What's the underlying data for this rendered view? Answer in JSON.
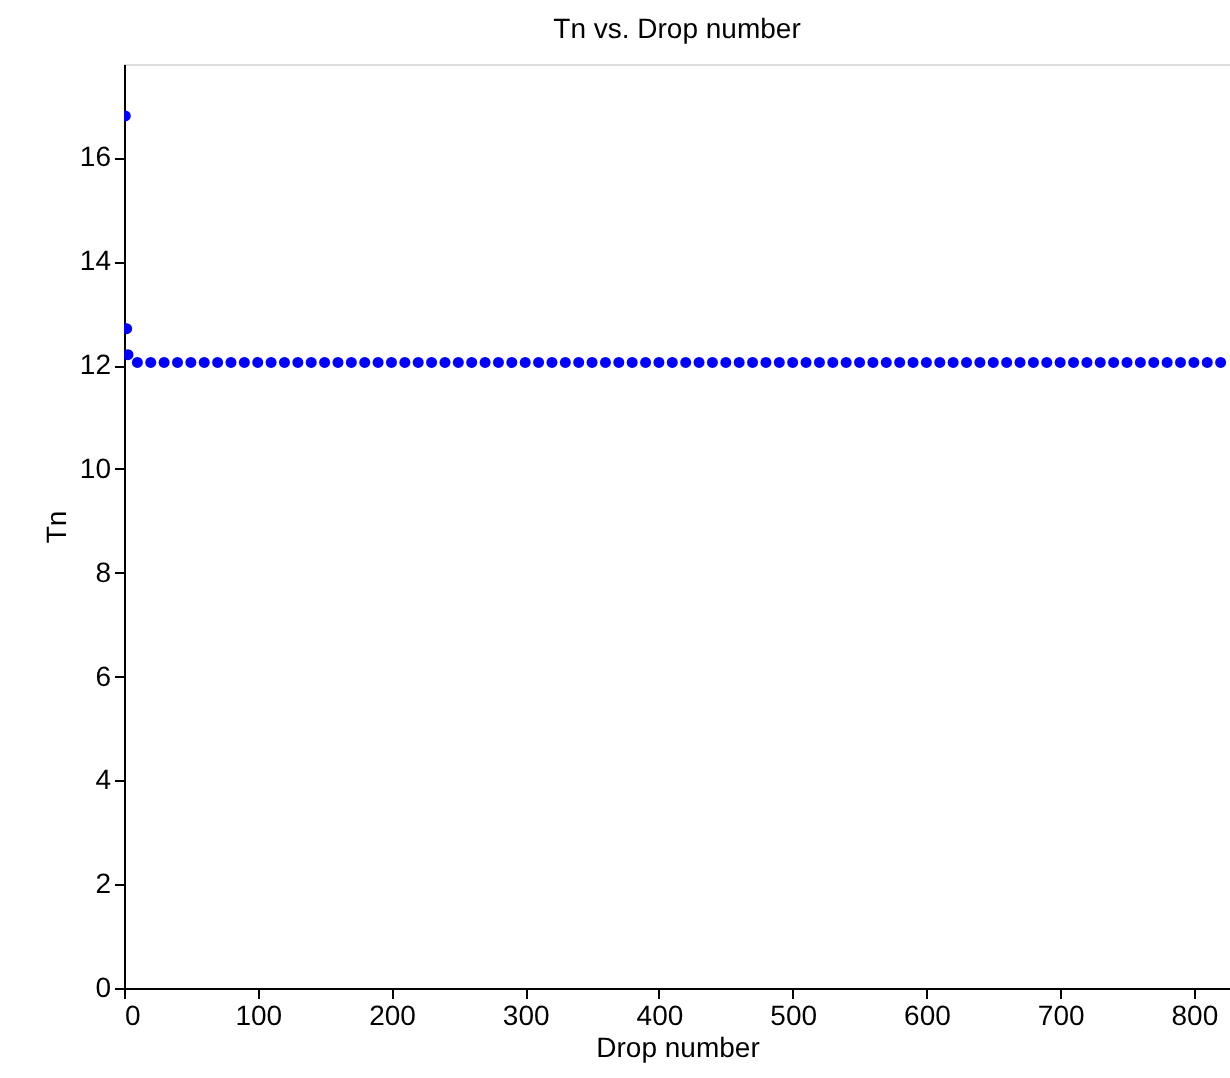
{
  "chart_data": {
    "type": "scatter",
    "title": "Tn vs. Drop number",
    "xlabel": "Drop number",
    "ylabel": "Tn",
    "x": [
      1,
      2,
      3,
      10,
      20,
      30,
      40,
      50,
      60,
      70,
      80,
      90,
      100,
      110,
      120,
      130,
      140,
      150,
      160,
      170,
      180,
      190,
      200,
      210,
      220,
      230,
      240,
      250,
      260,
      270,
      280,
      290,
      300,
      310,
      320,
      330,
      340,
      350,
      360,
      370,
      380,
      390,
      400,
      410,
      420,
      430,
      440,
      450,
      460,
      470,
      480,
      490,
      500,
      510,
      520,
      530,
      540,
      550,
      560,
      570,
      580,
      590,
      600,
      610,
      620,
      630,
      640,
      650,
      660,
      670,
      680,
      690,
      700,
      710,
      720,
      730,
      740,
      750,
      760,
      770,
      780,
      790,
      800,
      810,
      820
    ],
    "series": [
      {
        "color": "#0000ff",
        "values": [
          16.8,
          12.7,
          12.2,
          12.05,
          12.05,
          12.05,
          12.05,
          12.05,
          12.05,
          12.05,
          12.05,
          12.05,
          12.05,
          12.05,
          12.05,
          12.05,
          12.05,
          12.05,
          12.05,
          12.05,
          12.05,
          12.05,
          12.05,
          12.05,
          12.05,
          12.05,
          12.05,
          12.05,
          12.05,
          12.05,
          12.05,
          12.05,
          12.05,
          12.05,
          12.05,
          12.05,
          12.05,
          12.05,
          12.05,
          12.05,
          12.05,
          12.05,
          12.05,
          12.05,
          12.05,
          12.05,
          12.05,
          12.05,
          12.05,
          12.05,
          12.05,
          12.05,
          12.05,
          12.05,
          12.05,
          12.05,
          12.05,
          12.05,
          12.05,
          12.05,
          12.05,
          12.05,
          12.05,
          12.05,
          12.05,
          12.05,
          12.05,
          12.05,
          12.05,
          12.05,
          12.05,
          12.05,
          12.05,
          12.05,
          12.05,
          12.05,
          12.05,
          12.05,
          12.05,
          12.05,
          12.05,
          12.05,
          12.05,
          12.05,
          12.05
        ]
      }
    ],
    "xlim": [
      0,
      827
    ],
    "xticks": [
      0,
      100,
      200,
      300,
      400,
      500,
      600,
      700,
      800
    ],
    "ylim": [
      0,
      17.8
    ],
    "yticks": [
      0,
      2,
      4,
      6,
      8,
      10,
      12,
      14,
      16
    ],
    "marker": "circle",
    "grid": false
  }
}
